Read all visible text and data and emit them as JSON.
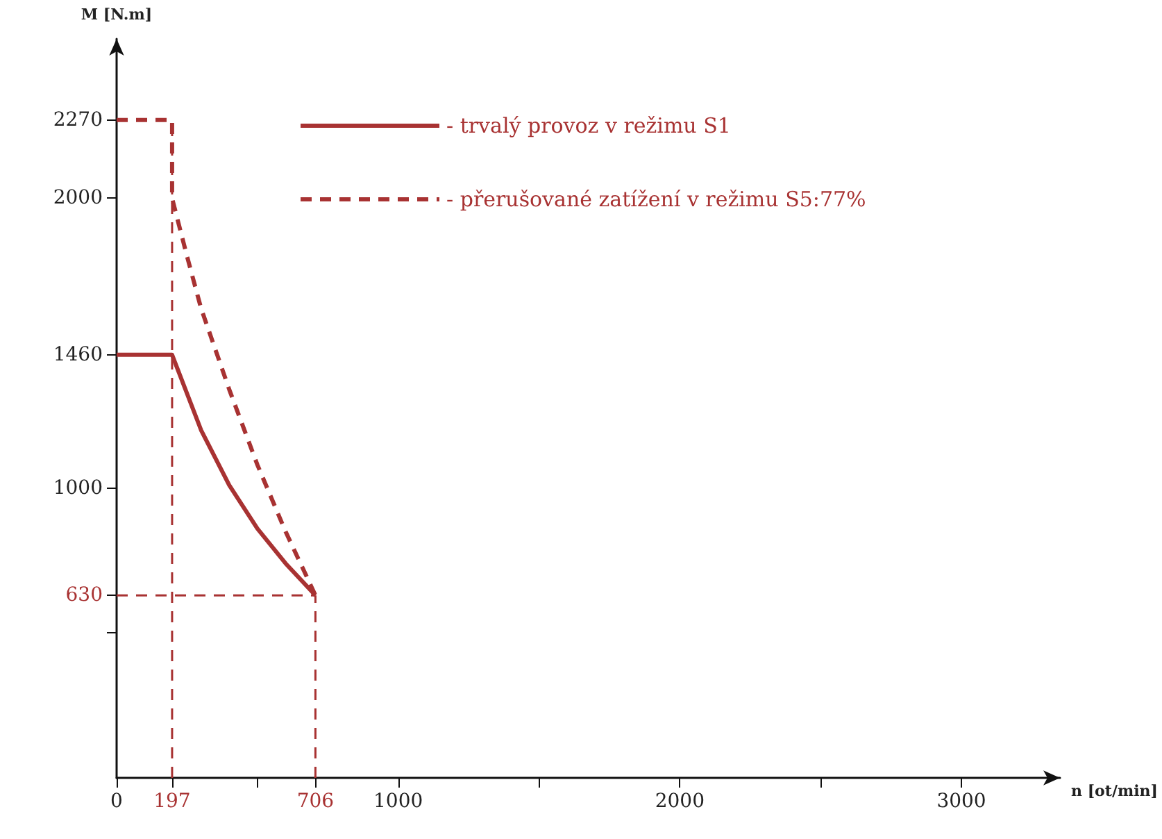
{
  "chart_data": {
    "type": "line",
    "xlabel": "n [ot/min]",
    "ylabel": "M [N.m]",
    "xlim": [
      0,
      3350
    ],
    "ylim": [
      0,
      2550
    ],
    "xticks": [
      0,
      197,
      {
        "value": 500,
        "label": null
      },
      706,
      1000,
      {
        "value": 1500,
        "label": null
      },
      2000,
      {
        "value": 2500,
        "label": null
      },
      3000
    ],
    "yticks": [
      {
        "value": 500,
        "label": null
      },
      630,
      1000,
      1460,
      2000,
      2270
    ],
    "series": [
      {
        "name": "- trvalý provoz v režimu S1",
        "color": "#a83232",
        "line_style": "solid",
        "x": [
          0,
          197,
          300,
          400,
          500,
          600,
          706
        ],
        "values": [
          1460,
          1460,
          1200,
          1010,
          860,
          740,
          630
        ]
      },
      {
        "name": "- přerušované zatížení v režimu S5:77%",
        "color": "#a83232",
        "line_style": "dashed",
        "x": [
          0,
          197,
          197,
          250,
          300,
          400,
          500,
          600,
          706
        ],
        "values": [
          2270,
          2270,
          2000,
          1800,
          1620,
          1340,
          1080,
          850,
          630
        ]
      }
    ],
    "ref_lines": [
      {
        "axis": "x",
        "value": 197,
        "color": "#a83232",
        "line_style": "dashed"
      },
      {
        "axis": "x",
        "value": 706,
        "color": "#a83232",
        "line_style": "dashed"
      },
      {
        "axis": "y",
        "value": 630,
        "color": "#a83232",
        "line_style": "dashed"
      }
    ],
    "legend": "top",
    "grid": false,
    "marker": "none"
  }
}
